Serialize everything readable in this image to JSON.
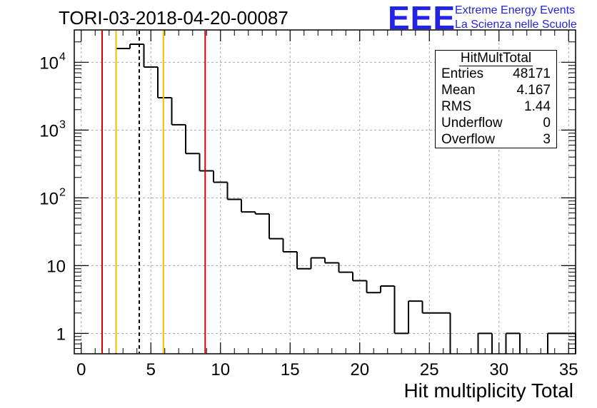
{
  "title": "TORI-03-2018-04-20-00087",
  "logo": {
    "mark": "EEE",
    "line1": "Extreme Energy Events",
    "line2": "La Scienza nelle Scuole",
    "color": "#2323e6"
  },
  "stats": {
    "title": "HitMultTotal",
    "rows": [
      {
        "label": "Entries",
        "value": "48171"
      },
      {
        "label": "Mean",
        "value": "4.167"
      },
      {
        "label": "RMS",
        "value": "1.44"
      },
      {
        "label": "Underflow",
        "value": "0"
      },
      {
        "label": "Overflow",
        "value": "3"
      }
    ]
  },
  "chart_data": {
    "type": "histogram",
    "title": "TORI-03-2018-04-20-00087",
    "xlabel": "Hit multiplicity Total",
    "ylabel": "",
    "xlim": [
      -0.5,
      35.5
    ],
    "ylim": [
      0.5,
      30000
    ],
    "yscale": "log",
    "grid": true,
    "bin_width": 1,
    "bin_centers": [
      0,
      1,
      2,
      3,
      4,
      5,
      6,
      7,
      8,
      9,
      10,
      11,
      12,
      13,
      14,
      15,
      16,
      17,
      18,
      19,
      20,
      21,
      22,
      23,
      24,
      25,
      26,
      27,
      28,
      29,
      30,
      31,
      32,
      33,
      34,
      35
    ],
    "counts": [
      0,
      0,
      0,
      16000,
      18500,
      8500,
      3000,
      1200,
      450,
      250,
      170,
      95,
      62,
      58,
      25,
      16,
      9,
      13,
      11,
      8,
      6,
      4,
      5,
      1,
      3,
      2,
      2,
      0,
      0,
      1,
      0,
      1,
      0,
      0,
      1,
      1
    ],
    "x_ticks": [
      0,
      5,
      10,
      15,
      20,
      25,
      30,
      35
    ],
    "y_ticks": [
      {
        "value": 1,
        "label": "1"
      },
      {
        "value": 10,
        "label": "10"
      },
      {
        "value": 100,
        "label": "10",
        "exp": "2"
      },
      {
        "value": 1000,
        "label": "10",
        "exp": "3"
      },
      {
        "value": 10000,
        "label": "10",
        "exp": "4"
      }
    ],
    "vertical_lines": [
      {
        "x": 1.5,
        "color": "#dd0000",
        "style": "solid"
      },
      {
        "x": 2.5,
        "color": "#f0c000",
        "style": "solid"
      },
      {
        "x": 4.167,
        "color": "#000000",
        "style": "dashed"
      },
      {
        "x": 5.9,
        "color": "#f0c000",
        "style": "solid"
      },
      {
        "x": 8.9,
        "color": "#dd0000",
        "style": "solid"
      }
    ]
  }
}
